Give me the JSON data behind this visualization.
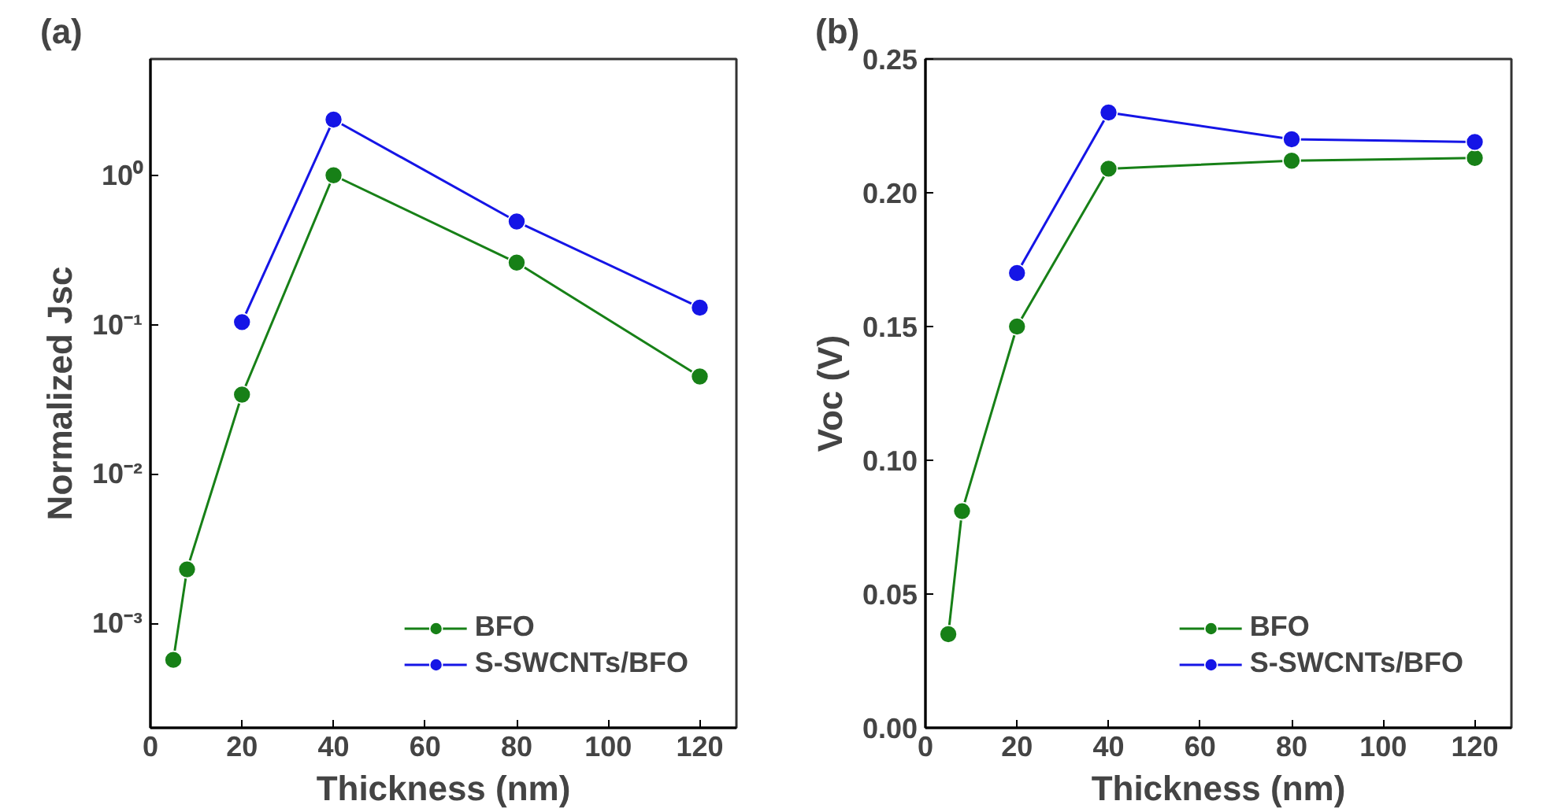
{
  "chart_data": [
    {
      "type": "line",
      "title": "(a)",
      "xlabel": "Thickness (nm)",
      "ylabel": "Normalized Jsc",
      "log": "y",
      "grid": false,
      "legend": "bottom right",
      "marker": "circle",
      "line_style": "solid",
      "xlim": [
        0,
        128
      ],
      "xticks": [
        0,
        20,
        40,
        60,
        80,
        100,
        120
      ],
      "ylim": [
        0.0002,
        6
      ],
      "yticks": [
        {
          "value": 0.001,
          "label": "10⁻³"
        },
        {
          "value": 0.01,
          "label": "10⁻²"
        },
        {
          "value": 0.1,
          "label": "10⁻¹"
        },
        {
          "value": 1,
          "label": "10⁰"
        }
      ],
      "series": [
        {
          "name": "BFO",
          "color": "#178017",
          "x": [
            5,
            8,
            20,
            40,
            80,
            120
          ],
          "values": [
            0.00057,
            0.0023,
            0.034,
            1.0,
            0.26,
            0.045
          ]
        },
        {
          "name": "S-SWCNTs/BFO",
          "color": "#1515e6",
          "x": [
            20,
            40,
            80,
            120
          ],
          "values": [
            0.104,
            2.36,
            0.49,
            0.13
          ]
        }
      ]
    },
    {
      "type": "line",
      "title": "(b)",
      "xlabel": "Thickness (nm)",
      "ylabel": "Voc (V)",
      "grid": false,
      "legend": "bottom right",
      "marker": "circle",
      "line_style": "solid",
      "xlim": [
        0,
        128
      ],
      "xticks": [
        0,
        20,
        40,
        60,
        80,
        100,
        120
      ],
      "ylim": [
        0,
        0.25
      ],
      "yticks": [
        {
          "value": 0,
          "label": "0.00"
        },
        {
          "value": 0.05,
          "label": "0.05"
        },
        {
          "value": 0.1,
          "label": "0.10"
        },
        {
          "value": 0.15,
          "label": "0.15"
        },
        {
          "value": 0.2,
          "label": "0.20"
        },
        {
          "value": 0.25,
          "label": "0.25"
        }
      ],
      "series": [
        {
          "name": "BFO",
          "color": "#178017",
          "x": [
            5,
            8,
            20,
            40,
            80,
            120
          ],
          "values": [
            0.035,
            0.081,
            0.15,
            0.209,
            0.212,
            0.213
          ]
        },
        {
          "name": "S-SWCNTs/BFO",
          "color": "#1515e6",
          "x": [
            20,
            40,
            80,
            120
          ],
          "values": [
            0.17,
            0.23,
            0.22,
            0.219
          ]
        }
      ]
    }
  ]
}
